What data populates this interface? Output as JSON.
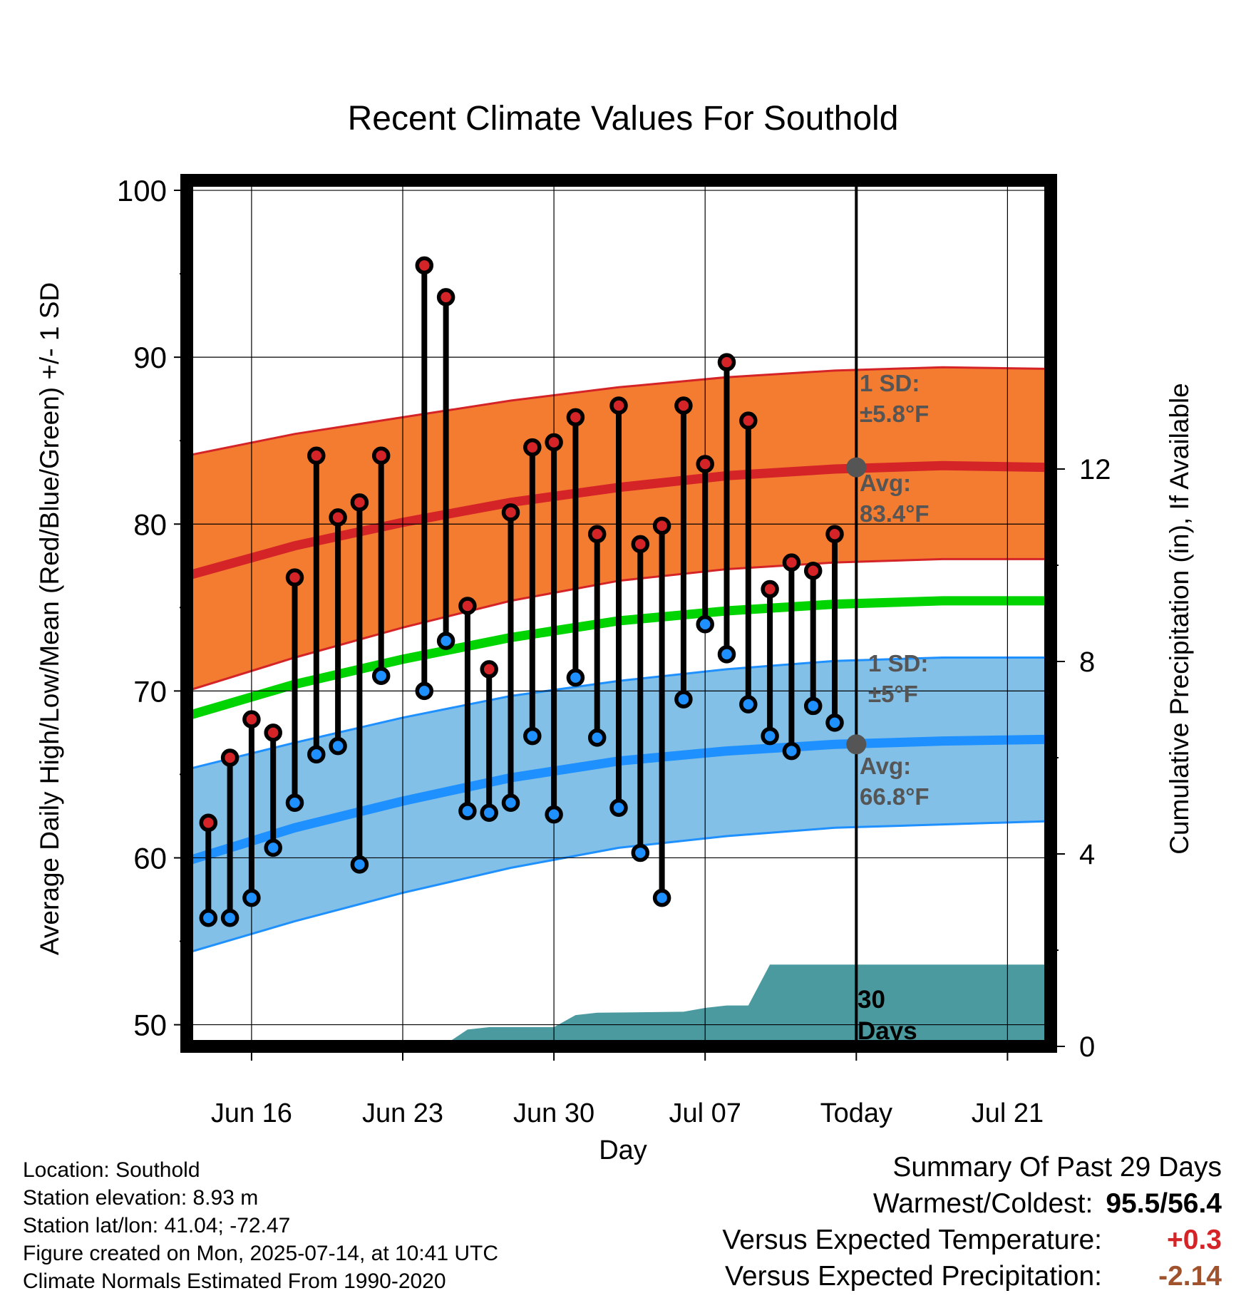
{
  "chart_data": {
    "type": "line",
    "title": "Recent Climate Values For Southold",
    "xlabel": "Day",
    "ylabel": "Average Daily High/Low/Mean (Red/Blue/Green) +/- 1 SD",
    "y2label": "Cumulative Precipitation (in), If Available",
    "xlim": [
      "Jun 13",
      "Jul 23"
    ],
    "ylim": [
      48.7,
      100.6
    ],
    "y2lim": [
      0,
      18
    ],
    "x_ticks": [
      {
        "date": "Jun 16",
        "label": "Jun 16"
      },
      {
        "date": "Jun 23",
        "label": "Jun 23"
      },
      {
        "date": "Jun 30",
        "label": "Jun 30"
      },
      {
        "date": "Jul 07",
        "label": "Jul 07"
      },
      {
        "date": "Jul 14",
        "label": "Today"
      },
      {
        "date": "Jul 21",
        "label": "Jul 21"
      }
    ],
    "y_ticks": [
      50,
      60,
      70,
      80,
      90,
      100
    ],
    "y2_ticks": [
      0,
      4,
      8,
      12
    ],
    "today": "Jul 14",
    "grid": true,
    "colors": {
      "high": "#d42428",
      "low": "#1e90ff",
      "mean": "#00d400",
      "high_band": "#f47c30",
      "low_band": "#82c0e8",
      "precip": "#4a9aa0",
      "annotation": "#555555",
      "warm_value": "#d42428",
      "precip_value": "#a0522d"
    },
    "normals": {
      "dates": [
        "Jun 13",
        "Jun 18",
        "Jun 23",
        "Jun 28",
        "Jul 03",
        "Jul 08",
        "Jul 13",
        "Jul 18",
        "Jul 23"
      ],
      "high_avg": [
        76.9,
        78.7,
        80.1,
        81.3,
        82.2,
        82.9,
        83.3,
        83.5,
        83.4
      ],
      "high_sd_upper": [
        84.1,
        85.4,
        86.4,
        87.4,
        88.2,
        88.8,
        89.2,
        89.4,
        89.3
      ],
      "high_sd_lower": [
        70.0,
        72.0,
        73.8,
        75.4,
        76.6,
        77.3,
        77.7,
        77.9,
        77.9
      ],
      "mean": [
        68.5,
        70.4,
        71.9,
        73.2,
        74.2,
        74.8,
        75.2,
        75.4,
        75.4
      ],
      "low_avg": [
        59.8,
        61.8,
        63.4,
        64.8,
        65.8,
        66.4,
        66.8,
        67.0,
        67.1
      ],
      "low_sd_upper": [
        65.3,
        66.9,
        68.4,
        69.7,
        70.6,
        71.3,
        71.8,
        72.0,
        72.0
      ],
      "low_sd_lower": [
        54.3,
        56.2,
        57.9,
        59.4,
        60.6,
        61.3,
        61.8,
        62.0,
        62.2
      ]
    },
    "series": [
      {
        "name": "High",
        "x": [
          "Jun 14",
          "Jun 15",
          "Jun 16",
          "Jun 17",
          "Jun 18",
          "Jun 19",
          "Jun 20",
          "Jun 21",
          "Jun 22",
          "Jun 24",
          "Jun 25",
          "Jun 26",
          "Jun 27",
          "Jun 28",
          "Jun 29",
          "Jun 30",
          "Jul 01",
          "Jul 02",
          "Jul 03",
          "Jul 04",
          "Jul 05",
          "Jul 06",
          "Jul 07",
          "Jul 08",
          "Jul 09",
          "Jul 10",
          "Jul 11",
          "Jul 12",
          "Jul 13"
        ],
        "values": [
          62.1,
          66.0,
          68.3,
          67.5,
          76.8,
          84.1,
          80.4,
          81.3,
          84.1,
          95.5,
          93.6,
          75.1,
          71.3,
          80.7,
          84.6,
          84.9,
          86.4,
          79.4,
          87.1,
          78.8,
          79.9,
          87.1,
          83.6,
          89.7,
          86.2,
          76.1,
          77.7,
          77.2,
          79.4
        ]
      },
      {
        "name": "Low",
        "x": [
          "Jun 14",
          "Jun 15",
          "Jun 16",
          "Jun 17",
          "Jun 18",
          "Jun 19",
          "Jun 20",
          "Jun 21",
          "Jun 22",
          "Jun 24",
          "Jun 25",
          "Jun 26",
          "Jun 27",
          "Jun 28",
          "Jun 29",
          "Jun 30",
          "Jul 01",
          "Jul 02",
          "Jul 03",
          "Jul 04",
          "Jul 05",
          "Jul 06",
          "Jul 07",
          "Jul 08",
          "Jul 09",
          "Jul 10",
          "Jul 11",
          "Jul 12",
          "Jul 13"
        ],
        "values": [
          56.4,
          56.4,
          57.6,
          60.6,
          63.3,
          66.2,
          66.7,
          59.6,
          70.9,
          70.0,
          73.0,
          62.8,
          62.7,
          63.3,
          67.3,
          62.6,
          70.8,
          67.2,
          63.0,
          60.3,
          57.6,
          69.5,
          74.0,
          72.2,
          69.2,
          67.3,
          66.4,
          69.1,
          68.1
        ]
      },
      {
        "name": "Cumulative Precipitation",
        "axis": "y2",
        "x": [
          "Jun 13",
          "Jun 18",
          "Jun 21",
          "Jun 25",
          "Jun 26",
          "Jun 27",
          "Jun 30",
          "Jul 01",
          "Jul 02",
          "Jul 06",
          "Jul 07",
          "Jul 08",
          "Jul 09",
          "Jul 10",
          "Jul 23"
        ],
        "values": [
          0.0,
          0.0,
          0.03,
          0.05,
          0.35,
          0.4,
          0.4,
          0.65,
          0.7,
          0.72,
          0.8,
          0.85,
          0.85,
          1.7,
          1.7
        ]
      }
    ],
    "annotations": {
      "high_sd": {
        "label": "1 SD:",
        "value": "±5.8°F"
      },
      "high_avg": {
        "label": "Avg:",
        "value": "83.4°F",
        "y": 83.4
      },
      "low_sd": {
        "label": "1 SD:",
        "value": "±5°F"
      },
      "low_avg": {
        "label": "Avg:",
        "value": "66.8°F",
        "y": 66.8
      },
      "window_line1": "30",
      "window_line2": "Days"
    }
  },
  "metadata": {
    "location": "Location: Southold",
    "elevation": "Station elevation: 8.93 m",
    "latlon": "Station lat/lon: 41.04; -72.47",
    "created": "Figure created on Mon, 2025-07-14, at 10:41 UTC",
    "normals_period": "Climate Normals Estimated From 1990-2020"
  },
  "summary": {
    "title": "Summary Of Past 29 Days",
    "warmest_label": "Warmest/Coldest:",
    "warmest_value": "95.5",
    "separator": "/",
    "coldest_value": "56.4",
    "temp_label": "Versus Expected Temperature:",
    "temp_value": "+0.3",
    "precip_label": "Versus Expected Precipitation:",
    "precip_value": "-2.14"
  }
}
